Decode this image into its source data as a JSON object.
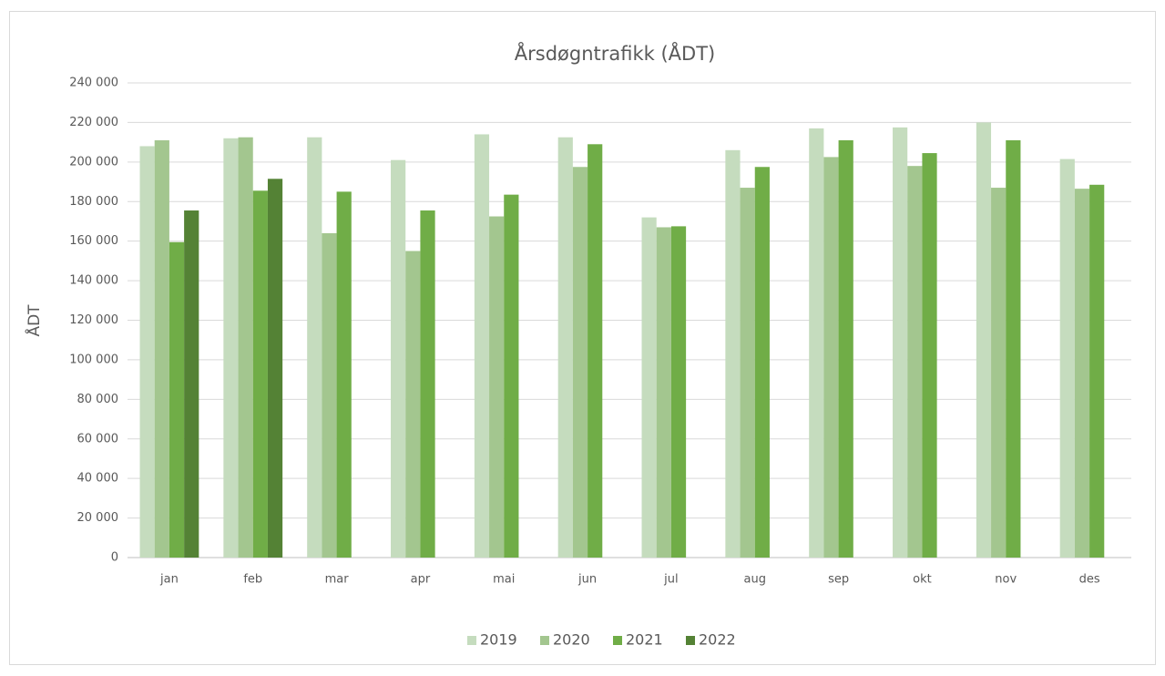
{
  "chart_data": {
    "type": "bar",
    "title": "Årsdøgntrafikk (ÅDT)",
    "y_label": "ÅDT",
    "categories": [
      "jan",
      "feb",
      "mar",
      "apr",
      "mai",
      "jun",
      "jul",
      "aug",
      "sep",
      "okt",
      "nov",
      "des"
    ],
    "series": [
      {
        "name": "2019",
        "color": "#c5dcbe",
        "values": [
          208000,
          212000,
          212500,
          201000,
          214000,
          212500,
          172000,
          206000,
          217000,
          217500,
          220000,
          201500
        ]
      },
      {
        "name": "2020",
        "color": "#a3c68f",
        "values": [
          211000,
          212500,
          164000,
          155000,
          172500,
          197500,
          167000,
          187000,
          202500,
          198000,
          187000,
          186500
        ]
      },
      {
        "name": "2021",
        "color": "#70ad47",
        "values": [
          159500,
          185500,
          185000,
          175500,
          183500,
          209000,
          167500,
          197500,
          211000,
          204500,
          211000,
          188500
        ]
      },
      {
        "name": "2022",
        "color": "#548235",
        "values": [
          175500,
          191500,
          null,
          null,
          null,
          null,
          null,
          null,
          null,
          null,
          null,
          null
        ]
      }
    ],
    "ylim": [
      0,
      240000
    ],
    "yticks": [
      {
        "value": 0,
        "label": "0"
      },
      {
        "value": 20000,
        "label": "20 000"
      },
      {
        "value": 40000,
        "label": "40 000"
      },
      {
        "value": 60000,
        "label": "60 000"
      },
      {
        "value": 80000,
        "label": "80 000"
      },
      {
        "value": 100000,
        "label": "100 000"
      },
      {
        "value": 120000,
        "label": "120 000"
      },
      {
        "value": 140000,
        "label": "140 000"
      },
      {
        "value": 160000,
        "label": "160 000"
      },
      {
        "value": 180000,
        "label": "180 000"
      },
      {
        "value": 200000,
        "label": "200 000"
      },
      {
        "value": 220000,
        "label": "220 000"
      },
      {
        "value": 240000,
        "label": "240 000"
      }
    ],
    "grid": true,
    "legend": "bottom"
  }
}
